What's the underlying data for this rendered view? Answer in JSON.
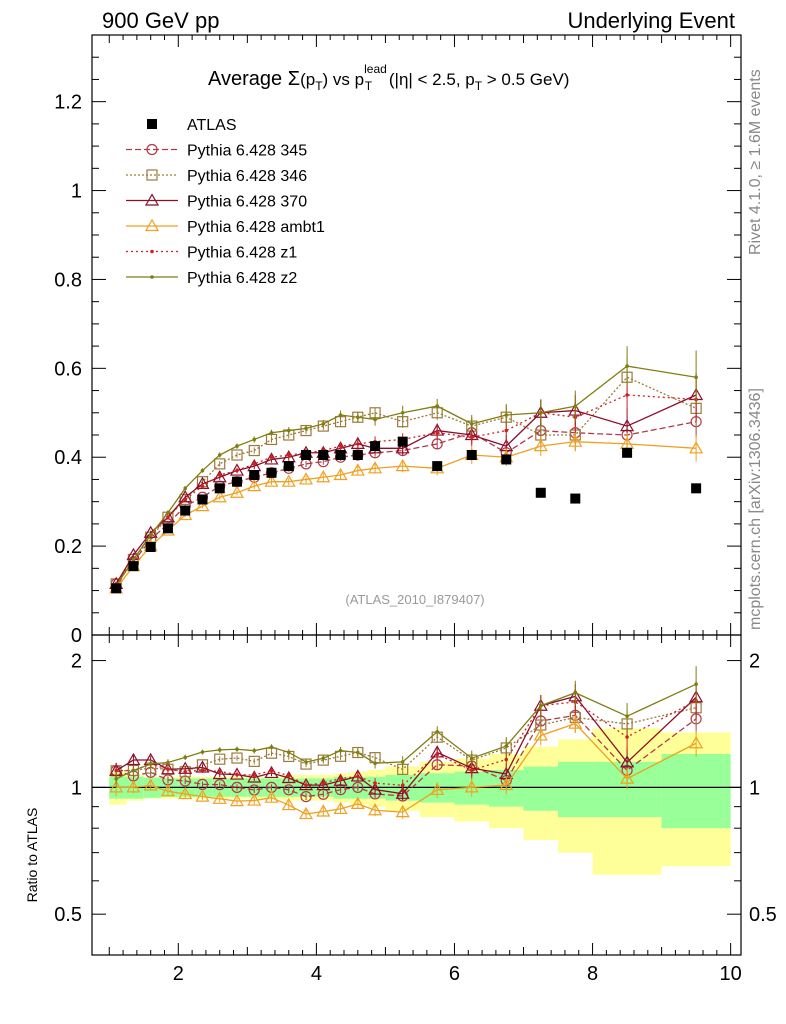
{
  "header": {
    "left": "900 GeV pp",
    "right": "Underlying Event"
  },
  "side_text": {
    "rivet": "Rivet 4.1.0, ≥ 1.6M events",
    "mcplots": "mcplots.cern.ch [arXiv:1306.3436]"
  },
  "chart_data": {
    "type": "scatter",
    "title": {
      "prefix": "Average ",
      "sigma": "Σ",
      "pt_open": "(p",
      "sub_T": "T",
      "pt_close": ")",
      "vs": " vs p",
      "lead": "lead",
      "tail_open": " (|η| < 2.5, p",
      "tail_close": " > 0.5 GeV)"
    },
    "watermark": "(ATLAS_2010_I879407)",
    "xlabel": "",
    "ylabel_ratio": "Ratio to ATLAS",
    "xlim": [
      0.75,
      10.15
    ],
    "ylim_main": [
      0,
      1.35
    ],
    "ylim_ratio": [
      0.4,
      2.3
    ],
    "x_ticks": [
      "2",
      "4",
      "6",
      "8",
      "10"
    ],
    "y_ticks_main": [
      "0",
      "0.2",
      "0.4",
      "0.6",
      "0.8",
      "1",
      "1.2"
    ],
    "y_ticks_ratio": [
      "0.5",
      "1",
      "2"
    ],
    "x": [
      1.1,
      1.35,
      1.6,
      1.85,
      2.1,
      2.35,
      2.6,
      2.85,
      3.1,
      3.35,
      3.6,
      3.85,
      4.1,
      4.35,
      4.6,
      4.85,
      5.25,
      5.75,
      6.25,
      6.75,
      7.25,
      7.75,
      8.5,
      9.5
    ],
    "bins": [
      1.0,
      1.25,
      1.5,
      1.75,
      2.0,
      2.25,
      2.5,
      2.75,
      3.0,
      3.25,
      3.5,
      3.75,
      4.0,
      4.25,
      4.5,
      4.75,
      5.0,
      5.5,
      6.0,
      6.5,
      7.0,
      7.5,
      8.0,
      9.0,
      10.0
    ],
    "data": {
      "name": "ATLAS",
      "values": [
        0.105,
        0.155,
        0.198,
        0.24,
        0.28,
        0.305,
        0.33,
        0.345,
        0.36,
        0.365,
        0.38,
        0.405,
        0.405,
        0.405,
        0.405,
        0.425,
        0.435,
        0.38,
        0.405,
        0.395,
        0.32,
        0.307,
        0.41,
        0.33
      ]
    },
    "band_green": [
      0.06,
      0.06,
      0.055,
      0.05,
      0.05,
      0.05,
      0.05,
      0.05,
      0.05,
      0.05,
      0.05,
      0.05,
      0.05,
      0.06,
      0.06,
      0.06,
      0.07,
      0.08,
      0.09,
      0.1,
      0.12,
      0.15,
      0.15,
      0.2,
      0.2
    ],
    "band_yellow": [
      0.09,
      0.07,
      0.06,
      0.06,
      0.06,
      0.06,
      0.06,
      0.06,
      0.06,
      0.06,
      0.07,
      0.07,
      0.07,
      0.08,
      0.09,
      0.1,
      0.12,
      0.15,
      0.17,
      0.2,
      0.25,
      0.3,
      0.38,
      0.35,
      0.38
    ],
    "series": [
      {
        "name": "Pythia 6.428 345",
        "color": "#b03a48",
        "dash": "6,3",
        "marker": "circle",
        "values": [
          0.115,
          0.165,
          0.215,
          0.25,
          0.29,
          0.31,
          0.335,
          0.345,
          0.355,
          0.365,
          0.375,
          0.385,
          0.39,
          0.4,
          0.405,
          0.41,
          0.415,
          0.43,
          0.455,
          0.41,
          0.46,
          0.455,
          0.45,
          0.48
        ],
        "errors": [
          0.005,
          0.005,
          0.005,
          0.005,
          0.005,
          0.005,
          0.005,
          0.006,
          0.006,
          0.006,
          0.007,
          0.007,
          0.007,
          0.008,
          0.008,
          0.009,
          0.01,
          0.012,
          0.015,
          0.018,
          0.02,
          0.025,
          0.03,
          0.035
        ]
      },
      {
        "name": "Pythia 6.428 346",
        "color": "#9c7a3c",
        "dash": "2,2",
        "marker": "square",
        "values": [
          0.115,
          0.17,
          0.22,
          0.265,
          0.305,
          0.345,
          0.385,
          0.405,
          0.415,
          0.44,
          0.45,
          0.46,
          0.47,
          0.48,
          0.49,
          0.5,
          0.48,
          0.5,
          0.47,
          0.49,
          0.45,
          0.45,
          0.58,
          0.51
        ],
        "errors": [
          0.005,
          0.005,
          0.005,
          0.005,
          0.005,
          0.005,
          0.006,
          0.006,
          0.007,
          0.007,
          0.008,
          0.008,
          0.009,
          0.01,
          0.01,
          0.012,
          0.014,
          0.016,
          0.02,
          0.025,
          0.03,
          0.035,
          0.045,
          0.05
        ]
      },
      {
        "name": "Pythia 6.428 370",
        "color": "#8b0e2a",
        "dash": "",
        "marker": "triangle",
        "values": [
          0.115,
          0.18,
          0.23,
          0.265,
          0.31,
          0.34,
          0.355,
          0.37,
          0.38,
          0.395,
          0.4,
          0.41,
          0.41,
          0.42,
          0.43,
          0.42,
          0.42,
          0.46,
          0.45,
          0.425,
          0.5,
          0.505,
          0.47,
          0.54
        ],
        "errors": [
          0.005,
          0.005,
          0.005,
          0.005,
          0.005,
          0.005,
          0.006,
          0.006,
          0.007,
          0.007,
          0.008,
          0.008,
          0.009,
          0.01,
          0.01,
          0.012,
          0.014,
          0.016,
          0.02,
          0.025,
          0.03,
          0.035,
          0.04,
          0.05
        ]
      },
      {
        "name": "Pythia 6.428 ambt1",
        "color": "#f0a020",
        "dash": "",
        "marker": "triangle",
        "values": [
          0.105,
          0.155,
          0.2,
          0.235,
          0.27,
          0.29,
          0.31,
          0.32,
          0.335,
          0.345,
          0.345,
          0.35,
          0.355,
          0.36,
          0.37,
          0.375,
          0.38,
          0.375,
          0.405,
          0.4,
          0.425,
          0.435,
          0.43,
          0.42
        ],
        "errors": [
          0.005,
          0.005,
          0.005,
          0.005,
          0.005,
          0.005,
          0.006,
          0.006,
          0.007,
          0.007,
          0.008,
          0.008,
          0.009,
          0.01,
          0.01,
          0.012,
          0.014,
          0.016,
          0.02,
          0.02,
          0.022,
          0.022,
          0.025,
          0.03
        ]
      },
      {
        "name": "Pythia 6.428 z1",
        "color": "#cc2222",
        "dash": "2,3",
        "marker": "dot",
        "values": [
          0.115,
          0.17,
          0.225,
          0.265,
          0.305,
          0.335,
          0.36,
          0.37,
          0.385,
          0.4,
          0.405,
          0.41,
          0.415,
          0.425,
          0.43,
          0.435,
          0.44,
          0.455,
          0.445,
          0.46,
          0.5,
          0.49,
          0.54,
          0.53
        ],
        "errors": [
          0.005,
          0.005,
          0.005,
          0.005,
          0.005,
          0.005,
          0.006,
          0.006,
          0.007,
          0.007,
          0.008,
          0.008,
          0.009,
          0.01,
          0.01,
          0.012,
          0.014,
          0.016,
          0.02,
          0.025,
          0.03,
          0.035,
          0.045,
          0.05
        ]
      },
      {
        "name": "Pythia 6.428 z2",
        "color": "#7f7f10",
        "dash": "",
        "marker": "dot",
        "values": [
          0.11,
          0.17,
          0.225,
          0.275,
          0.33,
          0.37,
          0.405,
          0.425,
          0.44,
          0.455,
          0.46,
          0.465,
          0.475,
          0.495,
          0.49,
          0.485,
          0.5,
          0.515,
          0.475,
          0.495,
          0.5,
          0.515,
          0.605,
          0.58
        ],
        "errors": [
          0.005,
          0.005,
          0.005,
          0.005,
          0.005,
          0.005,
          0.006,
          0.006,
          0.007,
          0.007,
          0.008,
          0.008,
          0.009,
          0.01,
          0.012,
          0.014,
          0.016,
          0.016,
          0.02,
          0.025,
          0.03,
          0.035,
          0.045,
          0.06
        ]
      }
    ]
  }
}
